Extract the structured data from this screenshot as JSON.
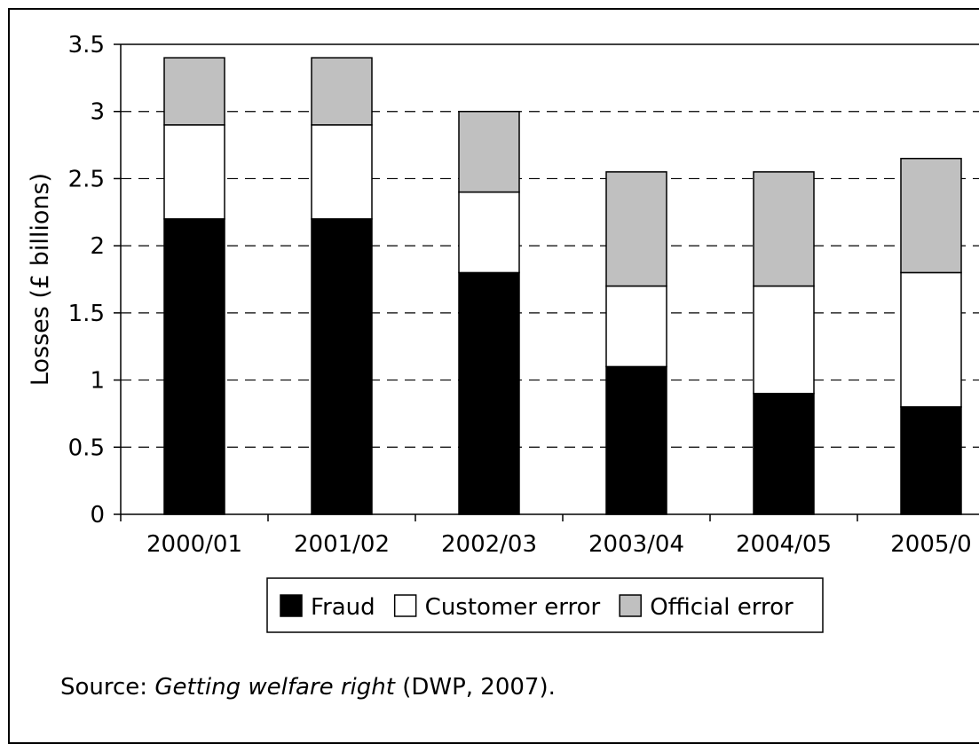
{
  "chart_data": {
    "type": "bar",
    "stacked": true,
    "categories": [
      "2000/01",
      "2001/02",
      "2002/03",
      "2003/04",
      "2004/05",
      "2005/0"
    ],
    "series": [
      {
        "name": "Fraud",
        "color": "#000000",
        "values": [
          2.2,
          2.2,
          1.8,
          1.1,
          0.9,
          0.8
        ]
      },
      {
        "name": "Customer error",
        "color": "#ffffff",
        "values": [
          0.7,
          0.7,
          0.6,
          0.6,
          0.8,
          1.0
        ]
      },
      {
        "name": "Official error",
        "color": "#c0c0c0",
        "values": [
          0.5,
          0.5,
          0.6,
          0.85,
          0.85,
          0.85
        ]
      }
    ],
    "title": "",
    "xlabel": "",
    "ylabel": "Losses (£ billions)",
    "ylim": [
      0,
      3.5
    ],
    "yticks": [
      "0",
      "0.5",
      "1",
      "1.5",
      "2",
      "2.5",
      "3",
      "3.5"
    ],
    "grid": "horizontal dashed",
    "legend_position": "bottom"
  },
  "source": {
    "prefix": "Source: ",
    "title": "Getting welfare right",
    "suffix": " (DWP, 2007)."
  }
}
